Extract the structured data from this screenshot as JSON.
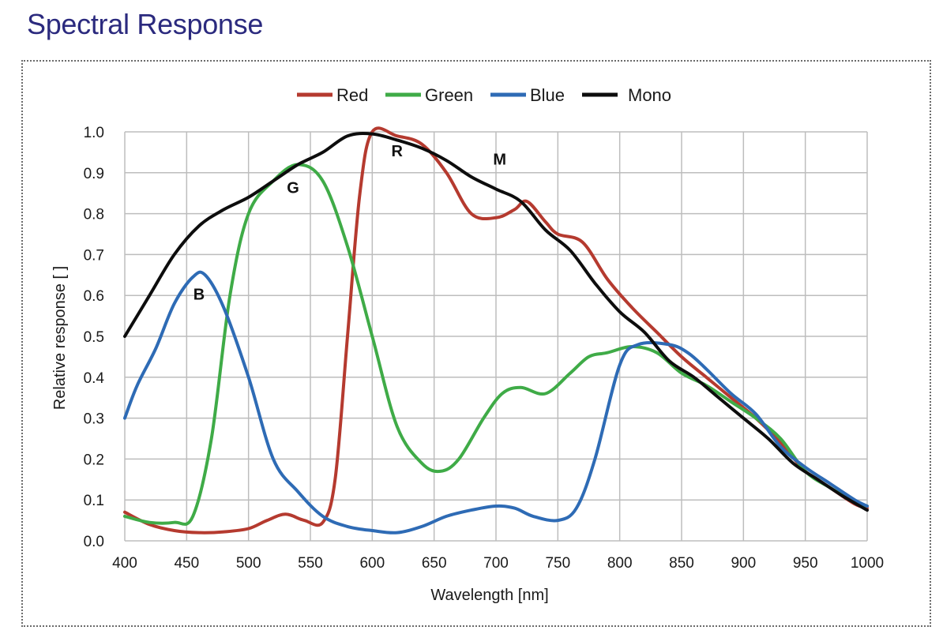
{
  "page": {
    "title": "Spectral Response"
  },
  "colors": {
    "title": "#2b2a7e",
    "grid": "#bdbdbd",
    "frame": "#6b6b6b"
  },
  "chart_data": {
    "type": "line",
    "title": "",
    "xlabel": "Wavelength [nm]",
    "ylabel": "Relative response [ ]",
    "xlim": [
      400,
      1000
    ],
    "ylim": [
      0.0,
      1.0
    ],
    "grid": true,
    "legend_position": "top-center",
    "x_ticks": [
      400,
      450,
      500,
      550,
      600,
      650,
      700,
      750,
      800,
      850,
      900,
      950,
      1000
    ],
    "y_ticks": [
      "0.0",
      "0.1",
      "0.2",
      "0.3",
      "0.4",
      "0.5",
      "0.6",
      "0.7",
      "0.8",
      "0.9",
      "1.0"
    ],
    "series": [
      {
        "name": "Red",
        "color": "#b53a2f",
        "points": [
          [
            400,
            0.07
          ],
          [
            420,
            0.04
          ],
          [
            440,
            0.025
          ],
          [
            460,
            0.02
          ],
          [
            480,
            0.022
          ],
          [
            500,
            0.03
          ],
          [
            515,
            0.05
          ],
          [
            530,
            0.065
          ],
          [
            545,
            0.05
          ],
          [
            560,
            0.045
          ],
          [
            570,
            0.15
          ],
          [
            580,
            0.5
          ],
          [
            590,
            0.85
          ],
          [
            600,
            1.0
          ],
          [
            620,
            0.99
          ],
          [
            640,
            0.97
          ],
          [
            660,
            0.9
          ],
          [
            680,
            0.8
          ],
          [
            700,
            0.79
          ],
          [
            715,
            0.81
          ],
          [
            725,
            0.83
          ],
          [
            740,
            0.78
          ],
          [
            750,
            0.75
          ],
          [
            770,
            0.73
          ],
          [
            790,
            0.64
          ],
          [
            810,
            0.57
          ],
          [
            830,
            0.51
          ],
          [
            850,
            0.45
          ],
          [
            870,
            0.4
          ],
          [
            890,
            0.35
          ],
          [
            910,
            0.3
          ],
          [
            930,
            0.24
          ],
          [
            950,
            0.17
          ],
          [
            970,
            0.13
          ],
          [
            990,
            0.09
          ],
          [
            1000,
            0.08
          ]
        ]
      },
      {
        "name": "Green",
        "color": "#3fab47",
        "points": [
          [
            400,
            0.06
          ],
          [
            420,
            0.045
          ],
          [
            440,
            0.045
          ],
          [
            455,
            0.06
          ],
          [
            470,
            0.25
          ],
          [
            485,
            0.6
          ],
          [
            500,
            0.8
          ],
          [
            520,
            0.88
          ],
          [
            540,
            0.92
          ],
          [
            560,
            0.88
          ],
          [
            580,
            0.72
          ],
          [
            600,
            0.5
          ],
          [
            620,
            0.28
          ],
          [
            640,
            0.19
          ],
          [
            655,
            0.17
          ],
          [
            670,
            0.2
          ],
          [
            690,
            0.3
          ],
          [
            705,
            0.36
          ],
          [
            720,
            0.375
          ],
          [
            740,
            0.36
          ],
          [
            760,
            0.41
          ],
          [
            775,
            0.45
          ],
          [
            790,
            0.46
          ],
          [
            810,
            0.475
          ],
          [
            830,
            0.46
          ],
          [
            850,
            0.41
          ],
          [
            870,
            0.38
          ],
          [
            890,
            0.34
          ],
          [
            910,
            0.3
          ],
          [
            930,
            0.25
          ],
          [
            950,
            0.17
          ],
          [
            970,
            0.13
          ],
          [
            990,
            0.095
          ],
          [
            1000,
            0.085
          ]
        ]
      },
      {
        "name": "Blue",
        "color": "#2e6bb5",
        "points": [
          [
            400,
            0.3
          ],
          [
            410,
            0.38
          ],
          [
            425,
            0.47
          ],
          [
            440,
            0.58
          ],
          [
            455,
            0.645
          ],
          [
            465,
            0.65
          ],
          [
            480,
            0.57
          ],
          [
            500,
            0.4
          ],
          [
            520,
            0.2
          ],
          [
            540,
            0.12
          ],
          [
            560,
            0.06
          ],
          [
            580,
            0.035
          ],
          [
            600,
            0.025
          ],
          [
            620,
            0.02
          ],
          [
            640,
            0.035
          ],
          [
            660,
            0.06
          ],
          [
            680,
            0.075
          ],
          [
            700,
            0.085
          ],
          [
            715,
            0.08
          ],
          [
            730,
            0.06
          ],
          [
            750,
            0.05
          ],
          [
            765,
            0.08
          ],
          [
            780,
            0.2
          ],
          [
            800,
            0.43
          ],
          [
            815,
            0.48
          ],
          [
            840,
            0.48
          ],
          [
            855,
            0.46
          ],
          [
            870,
            0.42
          ],
          [
            890,
            0.36
          ],
          [
            910,
            0.31
          ],
          [
            930,
            0.23
          ],
          [
            950,
            0.18
          ],
          [
            970,
            0.14
          ],
          [
            990,
            0.1
          ],
          [
            1000,
            0.085
          ]
        ]
      },
      {
        "name": "Mono",
        "color": "#0d0d0d",
        "points": [
          [
            400,
            0.5
          ],
          [
            420,
            0.6
          ],
          [
            440,
            0.7
          ],
          [
            460,
            0.77
          ],
          [
            480,
            0.81
          ],
          [
            500,
            0.84
          ],
          [
            520,
            0.88
          ],
          [
            540,
            0.92
          ],
          [
            560,
            0.95
          ],
          [
            580,
            0.99
          ],
          [
            600,
            0.995
          ],
          [
            620,
            0.98
          ],
          [
            640,
            0.96
          ],
          [
            660,
            0.93
          ],
          [
            680,
            0.89
          ],
          [
            700,
            0.86
          ],
          [
            720,
            0.83
          ],
          [
            740,
            0.76
          ],
          [
            760,
            0.71
          ],
          [
            780,
            0.63
          ],
          [
            800,
            0.56
          ],
          [
            820,
            0.51
          ],
          [
            840,
            0.44
          ],
          [
            860,
            0.4
          ],
          [
            880,
            0.35
          ],
          [
            900,
            0.3
          ],
          [
            920,
            0.25
          ],
          [
            940,
            0.19
          ],
          [
            960,
            0.15
          ],
          [
            980,
            0.11
          ],
          [
            1000,
            0.075
          ]
        ]
      }
    ],
    "annotations": [
      {
        "text": "B",
        "x": 460,
        "y": 0.59
      },
      {
        "text": "G",
        "x": 536,
        "y": 0.85
      },
      {
        "text": "R",
        "x": 620,
        "y": 0.94
      },
      {
        "text": "M",
        "x": 703,
        "y": 0.92
      }
    ]
  }
}
